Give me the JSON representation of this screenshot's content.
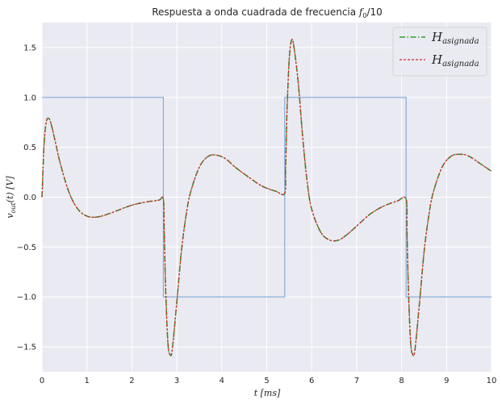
{
  "chart_data": {
    "type": "line",
    "title": "Respuesta a onda cuadrada de frecuencia f0/10",
    "title_parts": {
      "prefix": "Respuesta a onda cuadrada de frecuencia ",
      "f": "f",
      "sub": "0",
      "suffix": "/10"
    },
    "xlabel": "t   [ms]",
    "ylabel": "v_out(t)   [V]",
    "xlim": [
      0,
      10
    ],
    "ylim": [
      -1.75,
      1.75
    ],
    "xticks": [
      0,
      1,
      2,
      3,
      4,
      5,
      6,
      7,
      8,
      9,
      10
    ],
    "xtick_labels": [
      "0",
      "1",
      "2",
      "3",
      "4",
      "5",
      "6",
      "7",
      "8",
      "9",
      "10"
    ],
    "yticks": [
      -1.5,
      -1.0,
      -0.5,
      0.0,
      0.5,
      1.0,
      1.5
    ],
    "ytick_labels": [
      "−1.5",
      "−1.0",
      "−0.5",
      "0.0",
      "0.5",
      "1.0",
      "1.5"
    ],
    "grid": true,
    "legend_position": "top-right",
    "colors": {
      "background": "#eaeaf2",
      "grid": "#ffffff",
      "square_wave": "#7ea6d6",
      "series_green": "#2ca02c",
      "series_red": "#d62728"
    },
    "square_wave": {
      "x": [
        0,
        2.7,
        2.7,
        5.4,
        5.4,
        8.1,
        8.1,
        10
      ],
      "y": [
        1,
        1,
        -1,
        -1,
        1,
        1,
        -1,
        -1
      ]
    },
    "series": [
      {
        "name": "H_asignada",
        "legend": {
          "main": "H",
          "sub": "asignada"
        },
        "style": "dashdot",
        "color": "#2ca02c",
        "x": [
          0,
          0.05,
          0.1,
          0.15,
          0.2,
          0.3,
          0.4,
          0.6,
          0.8,
          1.0,
          1.2,
          1.4,
          1.7,
          2.0,
          2.3,
          2.6,
          2.7,
          2.72,
          2.75,
          2.8,
          2.85,
          2.9,
          3.0,
          3.1,
          3.2,
          3.3,
          3.5,
          3.7,
          3.9,
          4.1,
          4.3,
          4.6,
          4.9,
          5.2,
          5.4,
          5.42,
          5.45,
          5.5,
          5.55,
          5.6,
          5.7,
          5.8,
          5.9,
          6.0,
          6.2,
          6.4,
          6.6,
          6.8,
          7.0,
          7.3,
          7.6,
          7.9,
          8.1,
          8.12,
          8.15,
          8.2,
          8.25,
          8.3,
          8.4,
          8.5,
          8.6,
          8.7,
          8.9,
          9.1,
          9.3,
          9.5,
          9.8,
          10.0
        ],
        "y": [
          0.0,
          0.55,
          0.76,
          0.79,
          0.74,
          0.55,
          0.35,
          0.05,
          -0.12,
          -0.19,
          -0.2,
          -0.18,
          -0.13,
          -0.08,
          -0.05,
          -0.03,
          -0.02,
          -0.35,
          -0.9,
          -1.45,
          -1.58,
          -1.52,
          -1.05,
          -0.55,
          -0.2,
          0.04,
          0.3,
          0.41,
          0.42,
          0.38,
          0.3,
          0.2,
          0.11,
          0.06,
          0.04,
          0.3,
          0.85,
          1.38,
          1.57,
          1.52,
          1.15,
          0.6,
          0.15,
          -0.12,
          -0.35,
          -0.43,
          -0.43,
          -0.37,
          -0.29,
          -0.17,
          -0.09,
          -0.04,
          -0.02,
          -0.35,
          -0.9,
          -1.45,
          -1.58,
          -1.52,
          -1.05,
          -0.55,
          -0.2,
          0.04,
          0.3,
          0.41,
          0.43,
          0.41,
          0.32,
          0.26
        ]
      },
      {
        "name": "H_asignada",
        "legend": {
          "main": "H",
          "sub": "asignada"
        },
        "style": "dashed",
        "color": "#d62728",
        "same_as_series": 0
      }
    ]
  }
}
